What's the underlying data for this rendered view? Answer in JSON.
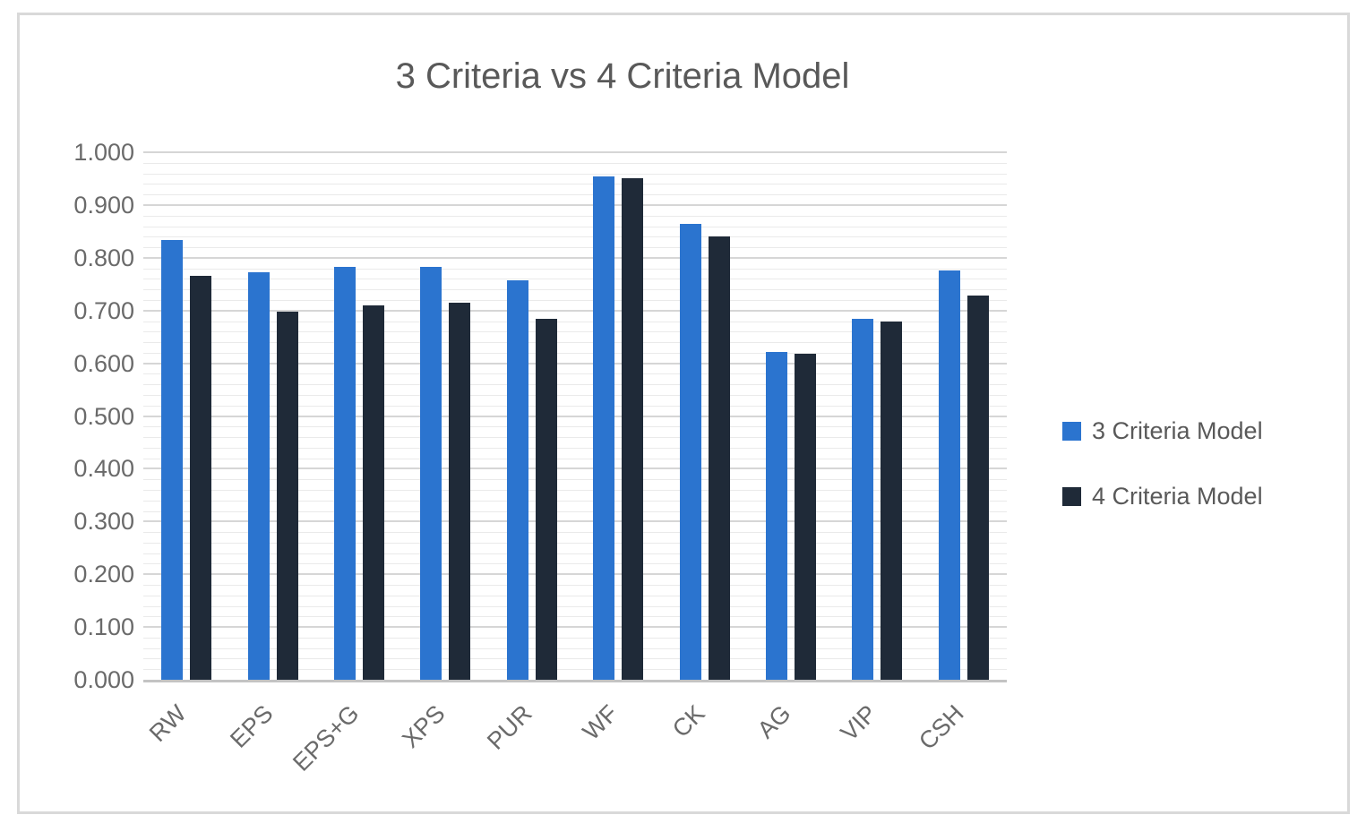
{
  "window": {
    "background_color": "#ffffff",
    "frame_border_color": "#d9d9d9"
  },
  "styles": {
    "title_color": "#595959",
    "axis_label_color": "#6a6a6a",
    "legend_text_color": "#595959",
    "major_grid_color": "#d6d6d6",
    "minor_grid_color": "#eaeaea",
    "axis_line_color": "#c3c3c3",
    "series1_color": "#2b74cf",
    "series2_color": "#1f2a38"
  },
  "chart_data": {
    "type": "bar",
    "title": "3 Criteria vs 4 Criteria Model",
    "xlabel": "",
    "ylabel": "",
    "categories": [
      "RW",
      "EPS",
      "EPS+G",
      "XPS",
      "PUR",
      "WF",
      "CK",
      "AG",
      "VIP",
      "CSH"
    ],
    "series": [
      {
        "name": "3 Criteria Model",
        "color": "#2b74cf",
        "values": [
          0.833,
          0.773,
          0.783,
          0.782,
          0.758,
          0.955,
          0.864,
          0.622,
          0.684,
          0.776
        ]
      },
      {
        "name": "4 Criteria Model",
        "color": "#1f2a38",
        "values": [
          0.766,
          0.698,
          0.709,
          0.715,
          0.684,
          0.951,
          0.84,
          0.618,
          0.68,
          0.728
        ]
      }
    ],
    "ylim": [
      0,
      1
    ],
    "ytick_step": 0.1,
    "minor_grid_step": 0.02,
    "ytick_decimals": 3,
    "grid": true,
    "legend_position": "right",
    "x_label_rotation_deg": -45
  }
}
